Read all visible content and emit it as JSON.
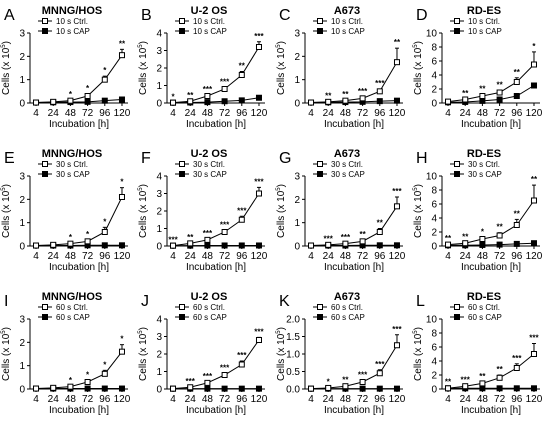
{
  "chart_data": [
    {
      "type": "line",
      "letter": "A",
      "title": "MNNG/HOS",
      "categories": [
        "4",
        "24",
        "48",
        "72",
        "96",
        "120"
      ],
      "xlabel": "Incubation [h]",
      "ylabel": "Cells (x 10",
      "ylabel_exp": "5",
      "ylabel_close": ")",
      "ylim": [
        0,
        3
      ],
      "yticks": [
        "0",
        "1",
        "2",
        "3"
      ],
      "series": [
        {
          "name": "10 s Ctrl.",
          "values": [
            0.02,
            0.05,
            0.1,
            0.3,
            1.0,
            2.05
          ],
          "err": [
            0.01,
            0.02,
            0.03,
            0.08,
            0.15,
            0.25
          ],
          "marker": "open"
        },
        {
          "name": "10 s CAP",
          "values": [
            0.02,
            0.03,
            0.04,
            0.05,
            0.1,
            0.15
          ],
          "err": [
            0,
            0,
            0,
            0,
            0.02,
            0.02
          ],
          "marker": "filled"
        }
      ],
      "sig": [
        "",
        "",
        "*",
        "*",
        "*",
        "**"
      ]
    },
    {
      "type": "line",
      "letter": "B",
      "title": "U-2 OS",
      "categories": [
        "4",
        "24",
        "48",
        "72",
        "96",
        "120"
      ],
      "xlabel": "Incubation [h]",
      "ylabel": "Cells (x 10",
      "ylabel_exp": "5",
      "ylabel_close": ")",
      "ylim": [
        0,
        4
      ],
      "yticks": [
        "0",
        "1",
        "2",
        "3",
        "4"
      ],
      "series": [
        {
          "name": "10 s Ctrl.",
          "values": [
            0.02,
            0.1,
            0.4,
            0.8,
            1.6,
            3.2
          ],
          "err": [
            0.01,
            0.02,
            0.05,
            0.1,
            0.2,
            0.3
          ],
          "marker": "open"
        },
        {
          "name": "10 s CAP",
          "values": [
            0.02,
            0.03,
            0.05,
            0.1,
            0.15,
            0.3
          ],
          "err": [
            0,
            0,
            0,
            0.02,
            0.02,
            0.03
          ],
          "marker": "filled"
        }
      ],
      "sig": [
        "*",
        "**",
        "***",
        "***",
        "**",
        "***"
      ]
    },
    {
      "type": "line",
      "letter": "C",
      "title": "A673",
      "categories": [
        "4",
        "24",
        "48",
        "72",
        "96",
        "120"
      ],
      "xlabel": "Incubation [h]",
      "ylabel": "Cells (x 10",
      "ylabel_exp": "5",
      "ylabel_close": ")",
      "ylim": [
        0,
        3
      ],
      "yticks": [
        "0",
        "1",
        "2",
        "3"
      ],
      "series": [
        {
          "name": "10 s Ctrl.",
          "values": [
            0.02,
            0.05,
            0.1,
            0.2,
            0.5,
            1.75
          ],
          "err": [
            0.01,
            0.02,
            0.03,
            0.05,
            0.1,
            0.6
          ],
          "marker": "open"
        },
        {
          "name": "10 s CAP",
          "values": [
            0.02,
            0.03,
            0.04,
            0.05,
            0.08,
            0.1
          ],
          "err": [
            0,
            0,
            0,
            0,
            0.02,
            0.02
          ],
          "marker": "filled"
        }
      ],
      "sig": [
        "",
        "**",
        "**",
        "***",
        "***",
        "**"
      ]
    },
    {
      "type": "line",
      "letter": "D",
      "title": "RD-ES",
      "categories": [
        "4",
        "24",
        "48",
        "72",
        "96",
        "120"
      ],
      "xlabel": "Incubation [h]",
      "ylabel": "Cells (x 10",
      "ylabel_exp": "5",
      "ylabel_close": ")",
      "ylim": [
        0,
        10
      ],
      "yticks": [
        "0",
        "2",
        "4",
        "6",
        "8",
        "10"
      ],
      "series": [
        {
          "name": "10 s Ctrl.",
          "values": [
            0.2,
            0.5,
            1.0,
            1.5,
            3.0,
            5.5
          ],
          "err": [
            0.1,
            0.1,
            0.2,
            0.3,
            0.6,
            1.8
          ],
          "marker": "open"
        },
        {
          "name": "10 s CAP",
          "values": [
            0.1,
            0.15,
            0.3,
            0.5,
            1.0,
            2.5
          ],
          "err": [
            0,
            0,
            0.05,
            0.05,
            0.1,
            0.2
          ],
          "marker": "filled"
        }
      ],
      "sig": [
        "",
        "**",
        "**",
        "**",
        "**",
        "*"
      ]
    },
    {
      "type": "line",
      "letter": "E",
      "title": "MNNG/HOS",
      "categories": [
        "4",
        "24",
        "48",
        "72",
        "96",
        "120"
      ],
      "xlabel": "Incubation [h]",
      "ylabel": "Cells (x 10",
      "ylabel_exp": "5",
      "ylabel_close": ")",
      "ylim": [
        0,
        3
      ],
      "yticks": [
        "0",
        "1",
        "2",
        "3"
      ],
      "series": [
        {
          "name": "30 s Ctrl.",
          "values": [
            0.02,
            0.05,
            0.1,
            0.2,
            0.6,
            2.1
          ],
          "err": [
            0.01,
            0.02,
            0.03,
            0.05,
            0.2,
            0.4
          ],
          "marker": "open"
        },
        {
          "name": "30 s CAP",
          "values": [
            0.02,
            0.02,
            0.02,
            0.03,
            0.03,
            0.03
          ],
          "err": [
            0,
            0,
            0,
            0,
            0,
            0
          ],
          "marker": "filled"
        }
      ],
      "sig": [
        "",
        "",
        "*",
        "*",
        "*",
        "*"
      ]
    },
    {
      "type": "line",
      "letter": "F",
      "title": "U-2 OS",
      "categories": [
        "4",
        "24",
        "48",
        "72",
        "96",
        "120"
      ],
      "xlabel": "Incubation [h]",
      "ylabel": "Cells (x 10",
      "ylabel_exp": "5",
      "ylabel_close": ")",
      "ylim": [
        0,
        4
      ],
      "yticks": [
        "0",
        "1",
        "2",
        "3",
        "4"
      ],
      "series": [
        {
          "name": "30 s Ctrl.",
          "values": [
            0.02,
            0.15,
            0.35,
            0.8,
            1.5,
            3.0
          ],
          "err": [
            0.01,
            0.02,
            0.05,
            0.1,
            0.2,
            0.35
          ],
          "marker": "open"
        },
        {
          "name": "30 s CAP",
          "values": [
            0.02,
            0.02,
            0.03,
            0.03,
            0.03,
            0.03
          ],
          "err": [
            0,
            0,
            0,
            0,
            0,
            0
          ],
          "marker": "filled"
        }
      ],
      "sig": [
        "***",
        "**",
        "***",
        "***",
        "***",
        "***"
      ]
    },
    {
      "type": "line",
      "letter": "G",
      "title": "A673",
      "categories": [
        "4",
        "24",
        "48",
        "72",
        "96",
        "120"
      ],
      "xlabel": "Incubation [h]",
      "ylabel": "Cells (x 10",
      "ylabel_exp": "5",
      "ylabel_close": ")",
      "ylim": [
        0,
        3
      ],
      "yticks": [
        "0",
        "1",
        "2",
        "3"
      ],
      "series": [
        {
          "name": "30 s Ctrl.",
          "values": [
            0.02,
            0.05,
            0.1,
            0.2,
            0.6,
            1.7
          ],
          "err": [
            0.01,
            0.02,
            0.03,
            0.05,
            0.15,
            0.4
          ],
          "marker": "open"
        },
        {
          "name": "30 s CAP",
          "values": [
            0.02,
            0.02,
            0.02,
            0.03,
            0.03,
            0.03
          ],
          "err": [
            0,
            0,
            0,
            0,
            0,
            0
          ],
          "marker": "filled"
        }
      ],
      "sig": [
        "",
        "***",
        "***",
        "**",
        "**",
        "***"
      ]
    },
    {
      "type": "line",
      "letter": "H",
      "title": "RD-ES",
      "categories": [
        "4",
        "24",
        "48",
        "72",
        "96",
        "120"
      ],
      "xlabel": "Incubation [h]",
      "ylabel": "Cells (x 10",
      "ylabel_exp": "5",
      "ylabel_close": ")",
      "ylim": [
        0,
        10
      ],
      "yticks": [
        "0",
        "2",
        "4",
        "6",
        "8",
        "10"
      ],
      "series": [
        {
          "name": "30 s Ctrl.",
          "values": [
            0.2,
            0.4,
            1.0,
            1.5,
            3.0,
            6.5
          ],
          "err": [
            0.1,
            0.1,
            0.2,
            0.4,
            0.8,
            2.2
          ],
          "marker": "open"
        },
        {
          "name": "30 s CAP",
          "values": [
            0.1,
            0.1,
            0.15,
            0.2,
            0.3,
            0.4
          ],
          "err": [
            0,
            0,
            0,
            0,
            0,
            0.05
          ],
          "marker": "filled"
        }
      ],
      "sig": [
        "**",
        "**",
        "*",
        "**",
        "**",
        "**"
      ]
    },
    {
      "type": "line",
      "letter": "I",
      "title": "MNNG/HOS",
      "categories": [
        "4",
        "24",
        "48",
        "72",
        "96",
        "120"
      ],
      "xlabel": "Incubation [h]",
      "ylabel": "Cells (x 10",
      "ylabel_exp": "5",
      "ylabel_close": ")",
      "ylim": [
        0,
        3
      ],
      "yticks": [
        "0",
        "1",
        "2",
        "3"
      ],
      "series": [
        {
          "name": "60 s Ctrl.",
          "values": [
            0.02,
            0.05,
            0.1,
            0.3,
            0.65,
            1.6
          ],
          "err": [
            0.01,
            0.02,
            0.03,
            0.06,
            0.15,
            0.3
          ],
          "marker": "open"
        },
        {
          "name": "60 s CAP",
          "values": [
            0.02,
            0.02,
            0.02,
            0.02,
            0.02,
            0.02
          ],
          "err": [
            0,
            0,
            0,
            0,
            0,
            0
          ],
          "marker": "filled"
        }
      ],
      "sig": [
        "",
        "",
        "*",
        "*",
        "*",
        "*"
      ]
    },
    {
      "type": "line",
      "letter": "J",
      "title": "U-2 OS",
      "categories": [
        "4",
        "24",
        "48",
        "72",
        "96",
        "120"
      ],
      "xlabel": "Incubation [h]",
      "ylabel": "Cells (x 10",
      "ylabel_exp": "5",
      "ylabel_close": ")",
      "ylim": [
        0,
        4
      ],
      "yticks": [
        "0",
        "1",
        "2",
        "3",
        "4"
      ],
      "series": [
        {
          "name": "60 s Ctrl.",
          "values": [
            0.02,
            0.1,
            0.35,
            0.8,
            1.4,
            2.8
          ],
          "err": [
            0.01,
            0.02,
            0.05,
            0.1,
            0.2,
            0.15
          ],
          "marker": "open"
        },
        {
          "name": "60 s CAP",
          "values": [
            0.02,
            0.02,
            0.02,
            0.02,
            0.02,
            0.02
          ],
          "err": [
            0,
            0,
            0,
            0,
            0,
            0
          ],
          "marker": "filled"
        }
      ],
      "sig": [
        "",
        "***",
        "***",
        "***",
        "***",
        "***"
      ]
    },
    {
      "type": "line",
      "letter": "K",
      "title": "A673",
      "categories": [
        "4",
        "24",
        "48",
        "72",
        "96",
        "120"
      ],
      "xlabel": "Incubation [h]",
      "ylabel": "Cells (x 10",
      "ylabel_exp": "5",
      "ylabel_close": ")",
      "ylim": [
        0,
        2
      ],
      "yticks": [
        "0.0",
        "0.5",
        "1.0",
        "1.5",
        "2.0"
      ],
      "series": [
        {
          "name": "60 s Ctrl.",
          "values": [
            0.01,
            0.03,
            0.08,
            0.2,
            0.45,
            1.25
          ],
          "err": [
            0.01,
            0.01,
            0.02,
            0.04,
            0.1,
            0.3
          ],
          "marker": "open"
        },
        {
          "name": "60 s CAP",
          "values": [
            0.01,
            0.01,
            0.01,
            0.01,
            0.01,
            0.01
          ],
          "err": [
            0,
            0,
            0,
            0,
            0,
            0
          ],
          "marker": "filled"
        }
      ],
      "sig": [
        "",
        "*",
        "**",
        "***",
        "***",
        "***"
      ]
    },
    {
      "type": "line",
      "letter": "L",
      "title": "RD-ES",
      "categories": [
        "4",
        "24",
        "48",
        "72",
        "96",
        "120"
      ],
      "xlabel": "Incubation [h]",
      "ylabel": "Cells (x 10",
      "ylabel_exp": "5",
      "ylabel_close": ")",
      "ylim": [
        0,
        10
      ],
      "yticks": [
        "0",
        "2",
        "4",
        "6",
        "8",
        "10"
      ],
      "series": [
        {
          "name": "60 s Ctrl.",
          "values": [
            0.1,
            0.4,
            0.8,
            1.6,
            3.0,
            5.0
          ],
          "err": [
            0.1,
            0.1,
            0.2,
            0.4,
            0.6,
            1.5
          ],
          "marker": "open"
        },
        {
          "name": "60 s CAP",
          "values": [
            0.1,
            0.1,
            0.1,
            0.1,
            0.1,
            0.1
          ],
          "err": [
            0,
            0,
            0,
            0,
            0,
            0
          ],
          "marker": "filled"
        }
      ],
      "sig": [
        "**",
        "***",
        "**",
        "**",
        "***",
        "***"
      ]
    }
  ]
}
